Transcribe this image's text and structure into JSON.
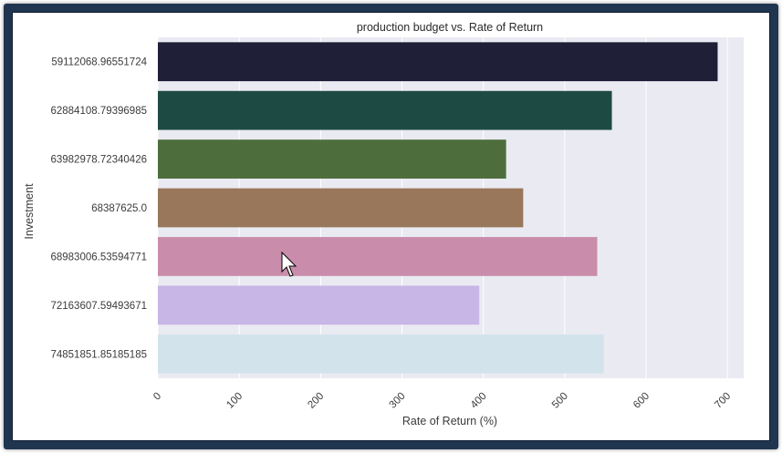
{
  "chart_data": {
    "type": "bar",
    "orientation": "horizontal",
    "title": "production budget vs. Rate of Return",
    "xlabel": "Rate of Return (%)",
    "ylabel": "Investment",
    "categories": [
      "59112068.96551724",
      "62884108.79396985",
      "63982978.72340426",
      "68387625.0",
      "68983006.53594771",
      "72163607.59493671",
      "74851851.85185185"
    ],
    "values": [
      688,
      558,
      428,
      449,
      540,
      395,
      548
    ],
    "colors": [
      "#1f1f38",
      "#1d4b44",
      "#4d6e3c",
      "#98775a",
      "#c98cab",
      "#c8b6e6",
      "#d2e3ec"
    ],
    "xlim": [
      0,
      720
    ],
    "xticks": [
      0,
      100,
      200,
      300,
      400,
      500,
      600,
      700
    ],
    "grid": true,
    "plot_background": "#eaeaf2",
    "tick_rotation": 45
  }
}
